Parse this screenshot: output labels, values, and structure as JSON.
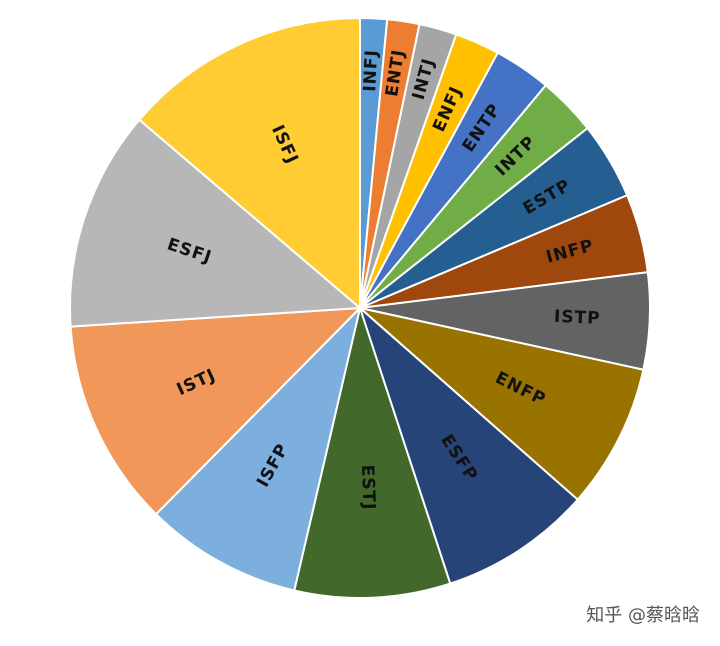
{
  "chart_data": {
    "type": "pie",
    "categories": [
      "INFJ",
      "ENTJ",
      "INTJ",
      "ENFJ",
      "ENTP",
      "INTP",
      "ESTP",
      "INFP",
      "ISTP",
      "ENFP",
      "ESFP",
      "ESTJ",
      "ISFP",
      "ISTJ",
      "ESFJ",
      "ISFJ"
    ],
    "values": [
      1.5,
      1.8,
      2.1,
      2.5,
      3.2,
      3.3,
      4.3,
      4.4,
      5.4,
      8.1,
      8.5,
      8.7,
      8.8,
      11.6,
      12.3,
      13.8
    ],
    "colors": [
      "#5b9bd5",
      "#ed7d31",
      "#a5a5a5",
      "#ffc000",
      "#4472c4",
      "#70ad47",
      "#255e91",
      "#9e480e",
      "#636363",
      "#997300",
      "#264478",
      "#43682b",
      "#7cafdd",
      "#f1975a",
      "#b7b7b7",
      "#ffcd33"
    ],
    "annotation": "知乎 @蔡晗晗"
  }
}
